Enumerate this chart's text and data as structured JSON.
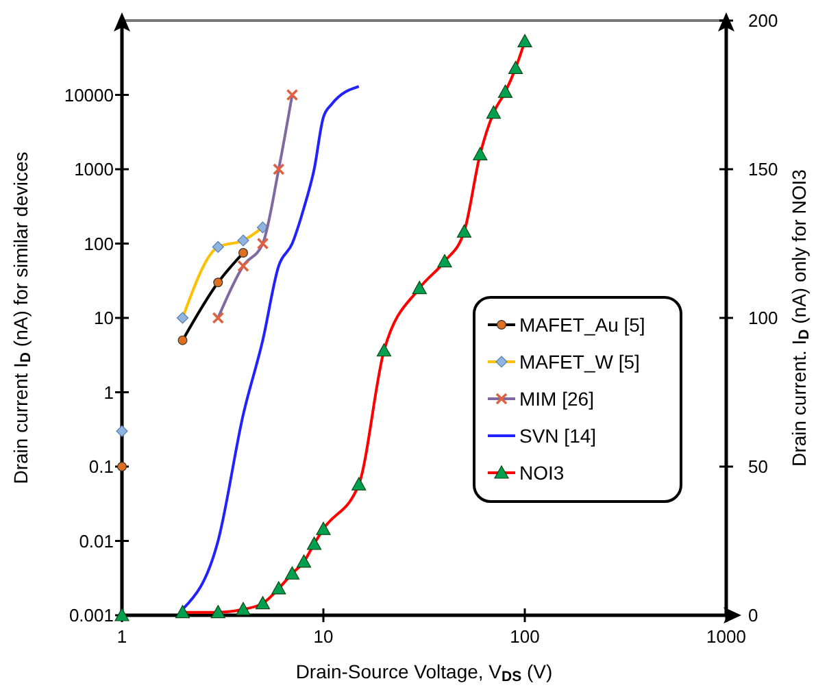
{
  "chart_data": {
    "type": "line",
    "xlabel": "Drain-Source Voltage, V$_{DS}$ (V)",
    "ylabel": "Drain current I$_{D}$ (nA)  for  similar devices",
    "y2label": "Drain current. I$_{D}$  (nA) only for NOI3",
    "log": "xy",
    "xlim": [
      1,
      1000
    ],
    "xticks": [
      1,
      10,
      100,
      1000
    ],
    "ylim": [
      0.001,
      100000
    ],
    "yticks": [
      0.001,
      0.01,
      0.1,
      1,
      10,
      100,
      1000,
      10000
    ],
    "y2lim": [
      0,
      200
    ],
    "y2ticks": [
      0,
      50,
      100,
      150,
      200
    ],
    "grid": false,
    "legend": "right",
    "line_style": "solid",
    "series": [
      {
        "name": "MAFET_Au [5]",
        "color": "#000000",
        "marker": "circle",
        "x": [
          2,
          3,
          4
        ],
        "values": [
          5,
          30,
          75
        ]
      },
      {
        "name": "MAFET_W [5]",
        "color": "#ffc000",
        "marker": "diamond",
        "x": [
          2,
          3,
          4,
          5
        ],
        "values": [
          10,
          90,
          110,
          165
        ]
      },
      {
        "name": "MIM [26]",
        "color": "#8068a0",
        "marker": "cross",
        "x": [
          3,
          4,
          5,
          6,
          7
        ],
        "values": [
          10,
          50,
          100,
          1000,
          10000
        ]
      },
      {
        "name": "SVN [14]",
        "color": "#2222ff",
        "marker": "none",
        "x": [
          2,
          3,
          4,
          5,
          6,
          7,
          8,
          9,
          10,
          11,
          15
        ],
        "values": [
          0.0012,
          0.01,
          0.5,
          5,
          50,
          100,
          300,
          1000,
          5000,
          7500,
          13000
        ]
      },
      {
        "name": "NOI3",
        "color": "#ff0000",
        "marker": "triangle",
        "axis": "y2",
        "x": [
          2,
          3,
          4,
          5,
          6,
          7,
          8,
          9,
          10,
          15,
          20,
          30,
          40,
          50,
          60,
          70,
          80,
          90,
          100
        ],
        "values": [
          1,
          1,
          2,
          4,
          9,
          14,
          18,
          24,
          29,
          44,
          89,
          110,
          119,
          129,
          155,
          169,
          176,
          184,
          193
        ]
      },
      {
        "type": "scatter",
        "color": "#e07020",
        "marker": "circle",
        "x": [
          1
        ],
        "values": [
          0.1
        ]
      },
      {
        "type": "scatter",
        "color": "#8fb4e0",
        "marker": "diamond",
        "x": [
          1
        ],
        "values": [
          0.3
        ]
      },
      {
        "type": "scatter",
        "color": "#00a050",
        "marker": "triangle",
        "axis": "y2",
        "x": [
          1
        ],
        "values": [
          0
        ]
      }
    ]
  }
}
